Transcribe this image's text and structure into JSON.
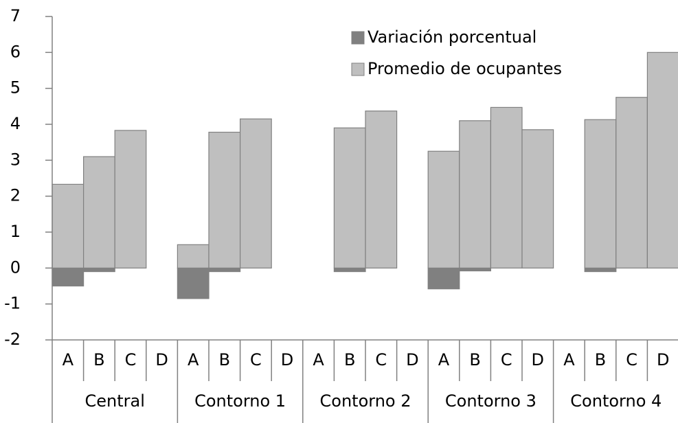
{
  "chart_data": {
    "type": "bar",
    "categories": [
      "A",
      "B",
      "C",
      "D",
      "A",
      "B",
      "C",
      "D",
      "A",
      "B",
      "C",
      "D",
      "A",
      "B",
      "C",
      "D",
      "A",
      "B",
      "C",
      "D"
    ],
    "groups": [
      "Central",
      "Contorno 1",
      "Contorno 2",
      "Contorno 3",
      "Contorno 4"
    ],
    "series": [
      {
        "name": "Variación porcentual",
        "color": "#808080",
        "values": [
          -0.5,
          -0.1,
          null,
          null,
          -0.85,
          -0.1,
          null,
          null,
          null,
          -0.1,
          null,
          null,
          -0.58,
          -0.08,
          null,
          null,
          null,
          -0.1,
          null,
          null
        ]
      },
      {
        "name": "Promedio de ocupantes",
        "color": "#bfbfbf",
        "values": [
          2.33,
          3.1,
          3.83,
          null,
          0.65,
          3.78,
          4.15,
          null,
          null,
          3.9,
          4.37,
          null,
          3.25,
          4.1,
          4.47,
          3.85,
          null,
          4.13,
          4.75,
          6.0
        ]
      }
    ],
    "ylim": [
      -2,
      7
    ],
    "yticks": [
      -2,
      -1,
      0,
      1,
      2,
      3,
      4,
      5,
      6,
      7
    ],
    "legend": "top-right"
  }
}
